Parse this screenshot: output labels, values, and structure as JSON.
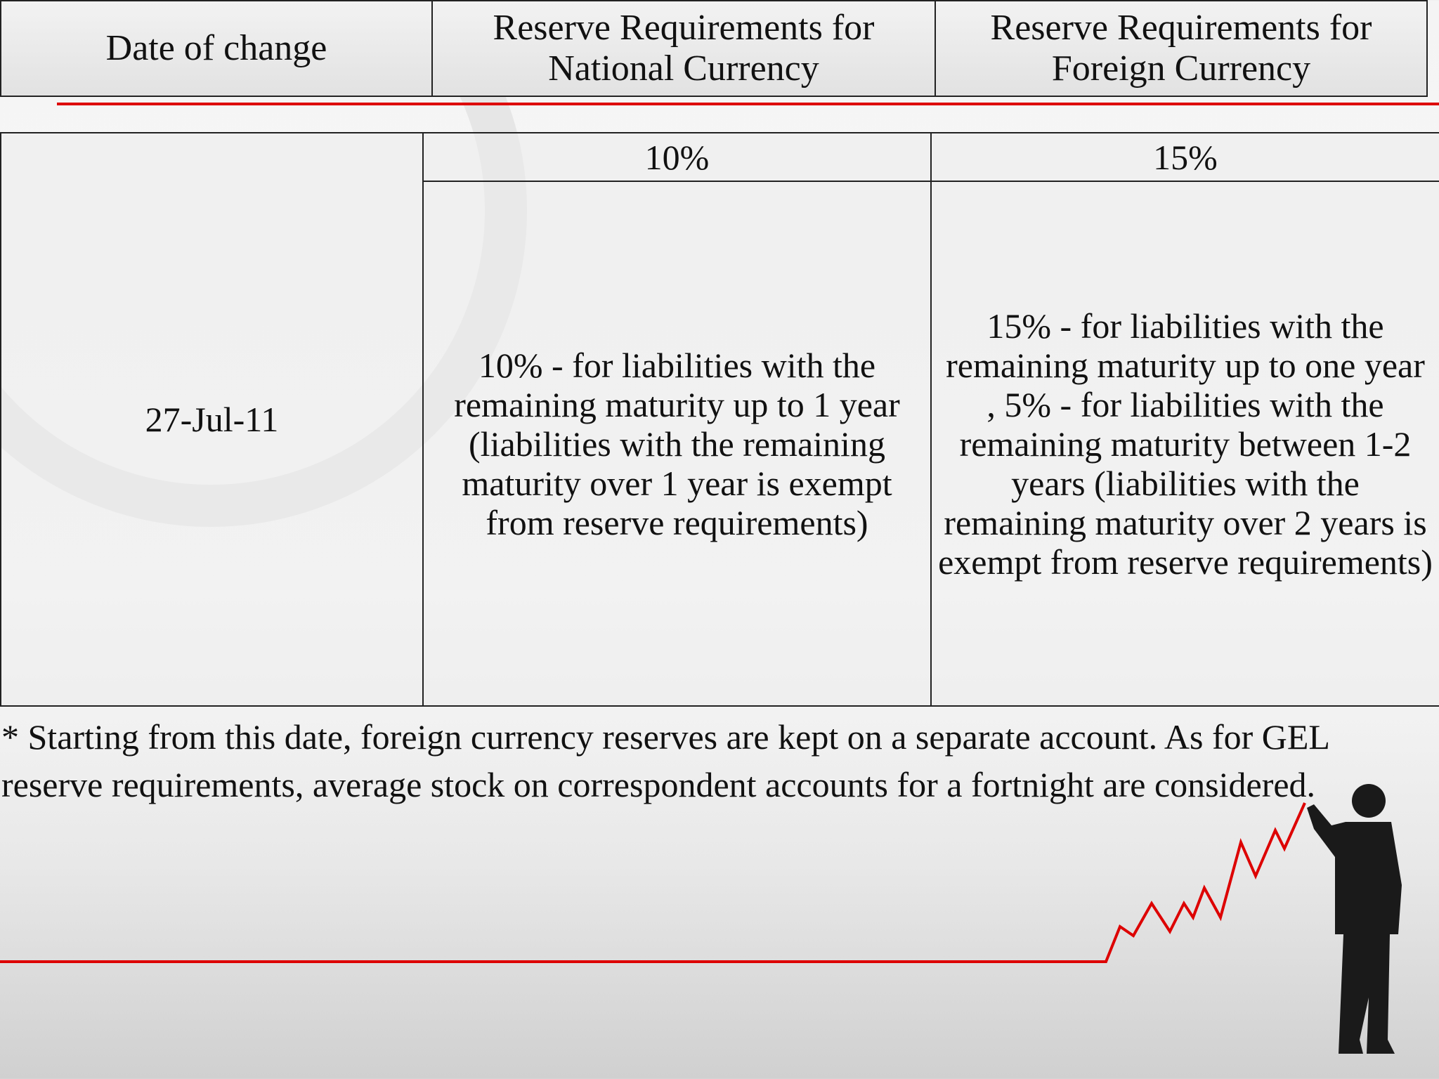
{
  "header": {
    "columns": [
      "Date of change",
      "Reserve Requirements for National Currency",
      "Reserve Requirements for Foreign Currency"
    ]
  },
  "table": {
    "rows": [
      {
        "date": "27-Jul-11",
        "national_rate": "10%",
        "foreign_rate": "15%",
        "national_detail": "10% - for liabilities with the remaining maturity up to 1 year (liabilities with the remaining maturity over 1 year is exempt from reserve requirements)",
        "foreign_detail": "15% - for liabilities with the remaining maturity up to one year , 5% - for liabilities with the remaining maturity between 1-2 years (liabilities with the remaining maturity over 2 years is exempt from reserve requirements)"
      }
    ]
  },
  "note": "* Starting from this date, foreign currency reserves are kept on a separate account. As for GEL reserve requirements, average stock on correspondent accounts  for a fortnight are considered."
}
